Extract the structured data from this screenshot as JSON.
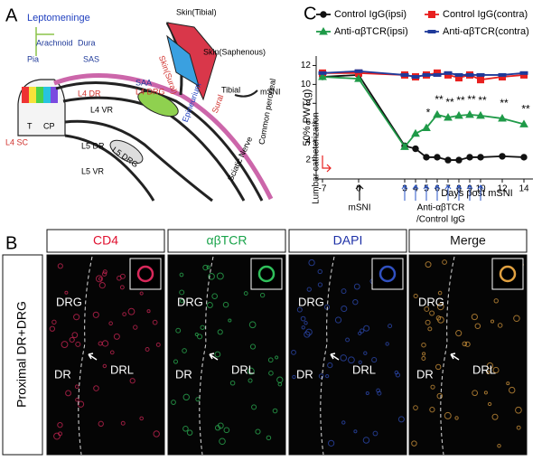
{
  "panel_a": {
    "letter": "A",
    "leptomeninge": "Leptomeninge",
    "arachnoid": "Arachnoid",
    "dura": "Dura",
    "pia": "Pia",
    "sas": "SAS",
    "saa": "SAA",
    "l4_dr": "L4 DR",
    "l4_vr": "L4 VR",
    "l4_drg": "L4 DRG",
    "epineurium": "Epineurium",
    "l5_dr": "L5 DR",
    "l5_vr": "L5 VR",
    "l5_drg": "L5 DRG",
    "l4_sc": "L4 SC",
    "t": "T",
    "cp": "CP",
    "skin_tibial": "Skin(Tibial)",
    "skin_saphenous": "Skin(Saphenous)",
    "skin_sural": "Skin(Sural)",
    "tibial": "Tibial",
    "sural": "Sural",
    "msni": "mSNI",
    "common_peroneal": "Common peroneal",
    "sciatic_nerve": "Sciatic Nerve"
  },
  "panel_b": {
    "letter": "B",
    "row_label": "Proximal DR+DRG",
    "panels": [
      {
        "title": "CD4",
        "color": "#e0102f",
        "regions": [
          "DRG",
          "DR",
          "DRL"
        ]
      },
      {
        "title": "αβTCR",
        "color": "#19a34a",
        "regions": [
          "DRG",
          "DR",
          "DRL"
        ]
      },
      {
        "title": "DAPI",
        "color": "#1c2fa6",
        "regions": [
          "DRG",
          "DR",
          "DRL"
        ]
      },
      {
        "title": "Merge",
        "color": "#111111",
        "regions": [
          "DRG",
          "DR",
          "DRL"
        ]
      }
    ]
  },
  "chart_data": {
    "type": "line",
    "panel_label": "C",
    "y_label": "50% PWT(g)",
    "x_label": "Days post mSNI",
    "categories": [
      "-7",
      "0",
      "3",
      "4",
      "5",
      "6",
      "7",
      "8",
      "9",
      "10",
      "12",
      "14"
    ],
    "ylim": [
      0,
      13
    ],
    "yticks": [
      2,
      4,
      6,
      8,
      10,
      12
    ],
    "series": [
      {
        "name": "Control IgG(ipsi)",
        "color": "#111111",
        "marker": "circle",
        "values": [
          10.8,
          11.0,
          3.5,
          3.2,
          2.3,
          2.3,
          2.0,
          2.0,
          2.3,
          2.3,
          2.4,
          2.3
        ]
      },
      {
        "name": "Control IgG(contra)",
        "color": "#e8201f",
        "marker": "square",
        "values": [
          11.2,
          11.2,
          11.0,
          10.8,
          11.0,
          11.2,
          11.0,
          10.7,
          11.0,
          10.5,
          10.8,
          11.0
        ]
      },
      {
        "name": "Anti-αβTCR(ipsi)",
        "color": "#1f9a48",
        "marker": "triangle",
        "values": [
          10.8,
          10.6,
          3.4,
          4.8,
          5.4,
          6.8,
          6.5,
          6.7,
          6.8,
          6.7,
          6.4,
          5.8
        ],
        "significance": [
          null,
          null,
          null,
          null,
          "*",
          "**",
          "**",
          "**",
          "**",
          "**",
          "**",
          "**"
        ]
      },
      {
        "name": "Anti-αβTCR(contra)",
        "color": "#1f3a9a",
        "marker": "dash",
        "values": [
          11.2,
          11.4,
          11.0,
          10.8,
          11.0,
          11.0,
          11.2,
          11.0,
          11.0,
          11.0,
          11.0,
          11.2
        ]
      }
    ],
    "annotations": {
      "catheterization": "Lumbar catheterization",
      "surgery": "mSNI",
      "treatment_line1": "Anti-αβTCR",
      "treatment_line2": "/Control IgG"
    }
  }
}
